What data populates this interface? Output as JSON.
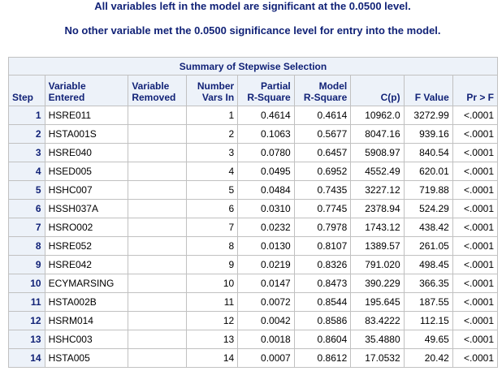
{
  "notes": {
    "line1": "All variables left in the model are significant at the 0.0500 level.",
    "line2": "No other variable met the 0.0500 significance level for entry into the model."
  },
  "table": {
    "title": "Summary of Stepwise Selection",
    "headers": {
      "step": "Step",
      "entered_l1": "Variable",
      "entered_l2": "Entered",
      "removed_l1": "Variable",
      "removed_l2": "Removed",
      "nvars_l1": "Number",
      "nvars_l2": "Vars In",
      "partial_l1": "Partial",
      "partial_l2": "R-Square",
      "model_l1": "Model",
      "model_l2": "R-Square",
      "cp": "C(p)",
      "fvalue": "F Value",
      "prf": "Pr > F"
    },
    "rows": [
      {
        "step": "1",
        "entered": "HSRE011",
        "removed": "",
        "nvars": "1",
        "partial": "0.4614",
        "model": "0.4614",
        "cp": "10962.0",
        "f": "3272.99",
        "p": "<.0001"
      },
      {
        "step": "2",
        "entered": "HSTA001S",
        "removed": "",
        "nvars": "2",
        "partial": "0.1063",
        "model": "0.5677",
        "cp": "8047.16",
        "f": "939.16",
        "p": "<.0001"
      },
      {
        "step": "3",
        "entered": "HSRE040",
        "removed": "",
        "nvars": "3",
        "partial": "0.0780",
        "model": "0.6457",
        "cp": "5908.97",
        "f": "840.54",
        "p": "<.0001"
      },
      {
        "step": "4",
        "entered": "HSED005",
        "removed": "",
        "nvars": "4",
        "partial": "0.0495",
        "model": "0.6952",
        "cp": "4552.49",
        "f": "620.01",
        "p": "<.0001"
      },
      {
        "step": "5",
        "entered": "HSHC007",
        "removed": "",
        "nvars": "5",
        "partial": "0.0484",
        "model": "0.7435",
        "cp": "3227.12",
        "f": "719.88",
        "p": "<.0001"
      },
      {
        "step": "6",
        "entered": "HSSH037A",
        "removed": "",
        "nvars": "6",
        "partial": "0.0310",
        "model": "0.7745",
        "cp": "2378.94",
        "f": "524.29",
        "p": "<.0001"
      },
      {
        "step": "7",
        "entered": "HSRO002",
        "removed": "",
        "nvars": "7",
        "partial": "0.0232",
        "model": "0.7978",
        "cp": "1743.12",
        "f": "438.42",
        "p": "<.0001"
      },
      {
        "step": "8",
        "entered": "HSRE052",
        "removed": "",
        "nvars": "8",
        "partial": "0.0130",
        "model": "0.8107",
        "cp": "1389.57",
        "f": "261.05",
        "p": "<.0001"
      },
      {
        "step": "9",
        "entered": "HSRE042",
        "removed": "",
        "nvars": "9",
        "partial": "0.0219",
        "model": "0.8326",
        "cp": "791.020",
        "f": "498.45",
        "p": "<.0001"
      },
      {
        "step": "10",
        "entered": "ECYMARSING",
        "removed": "",
        "nvars": "10",
        "partial": "0.0147",
        "model": "0.8473",
        "cp": "390.229",
        "f": "366.35",
        "p": "<.0001"
      },
      {
        "step": "11",
        "entered": "HSTA002B",
        "removed": "",
        "nvars": "11",
        "partial": "0.0072",
        "model": "0.8544",
        "cp": "195.645",
        "f": "187.55",
        "p": "<.0001"
      },
      {
        "step": "12",
        "entered": "HSRM014",
        "removed": "",
        "nvars": "12",
        "partial": "0.0042",
        "model": "0.8586",
        "cp": "83.4222",
        "f": "112.15",
        "p": "<.0001"
      },
      {
        "step": "13",
        "entered": "HSHC003",
        "removed": "",
        "nvars": "13",
        "partial": "0.0018",
        "model": "0.8604",
        "cp": "35.4880",
        "f": "49.65",
        "p": "<.0001"
      },
      {
        "step": "14",
        "entered": "HSTA005",
        "removed": "",
        "nvars": "14",
        "partial": "0.0007",
        "model": "0.8612",
        "cp": "17.0532",
        "f": "20.42",
        "p": "<.0001"
      }
    ]
  }
}
